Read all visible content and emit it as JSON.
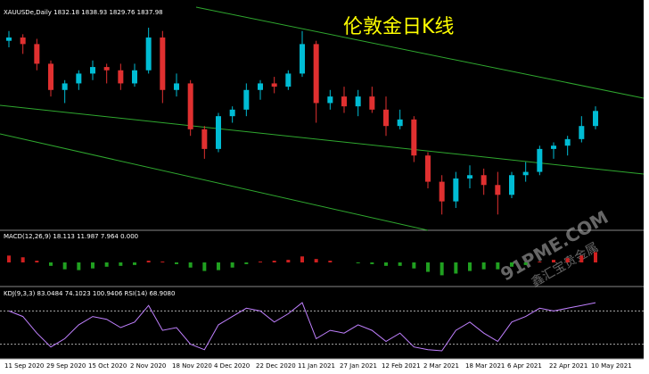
{
  "window": {
    "header": "XAUUSDe,Daily 1832.18 1838.93 1829.76 1837.98",
    "title": "伦敦金日K线",
    "x_labels": [
      "11 Sep 2020",
      "29 Sep 2020",
      "15 Oct 2020",
      "2 Nov 2020",
      "18 Nov 2020",
      "4 Dec 2020",
      "22 Dec 2020",
      "11 Jan 2021",
      "27 Jan 2021",
      "12 Feb 2021",
      "2 Mar 2021",
      "18 Mar 2021",
      "6 Apr 2021",
      "22 Apr 2021",
      "10 May 2021"
    ],
    "macd_label": "MACD(12,26,9) 18.113 11.987 7.964 0.000",
    "kdj_label": "KDJ(9,3,3) 83.0484 74.1023 100.9406 RSI(14) 68.9080",
    "watermark": [
      "91PME.COM",
      "鑫汇宝贵金属"
    ]
  },
  "chart_data": {
    "type": "candlestick",
    "up_color": "#00bcd4",
    "down_color": "#e03030",
    "ylim": [
      1660,
      1980
    ],
    "candles": [
      {
        "o": 1945,
        "h": 1960,
        "l": 1935,
        "c": 1950
      },
      {
        "o": 1950,
        "h": 1955,
        "l": 1925,
        "c": 1940
      },
      {
        "o": 1940,
        "h": 1948,
        "l": 1900,
        "c": 1910
      },
      {
        "o": 1910,
        "h": 1915,
        "l": 1860,
        "c": 1870
      },
      {
        "o": 1870,
        "h": 1885,
        "l": 1850,
        "c": 1880
      },
      {
        "o": 1880,
        "h": 1900,
        "l": 1870,
        "c": 1895
      },
      {
        "o": 1895,
        "h": 1915,
        "l": 1885,
        "c": 1905
      },
      {
        "o": 1905,
        "h": 1910,
        "l": 1880,
        "c": 1900
      },
      {
        "o": 1900,
        "h": 1910,
        "l": 1870,
        "c": 1880
      },
      {
        "o": 1880,
        "h": 1910,
        "l": 1875,
        "c": 1900
      },
      {
        "o": 1900,
        "h": 1965,
        "l": 1895,
        "c": 1950
      },
      {
        "o": 1950,
        "h": 1960,
        "l": 1850,
        "c": 1870
      },
      {
        "o": 1870,
        "h": 1895,
        "l": 1860,
        "c": 1880
      },
      {
        "o": 1880,
        "h": 1885,
        "l": 1800,
        "c": 1810
      },
      {
        "o": 1810,
        "h": 1815,
        "l": 1765,
        "c": 1780
      },
      {
        "o": 1780,
        "h": 1835,
        "l": 1775,
        "c": 1830
      },
      {
        "o": 1830,
        "h": 1845,
        "l": 1820,
        "c": 1840
      },
      {
        "o": 1840,
        "h": 1880,
        "l": 1830,
        "c": 1870
      },
      {
        "o": 1870,
        "h": 1885,
        "l": 1855,
        "c": 1880
      },
      {
        "o": 1880,
        "h": 1890,
        "l": 1865,
        "c": 1875
      },
      {
        "o": 1875,
        "h": 1900,
        "l": 1870,
        "c": 1895
      },
      {
        "o": 1895,
        "h": 1960,
        "l": 1890,
        "c": 1940
      },
      {
        "o": 1940,
        "h": 1945,
        "l": 1820,
        "c": 1850
      },
      {
        "o": 1850,
        "h": 1870,
        "l": 1840,
        "c": 1860
      },
      {
        "o": 1860,
        "h": 1875,
        "l": 1835,
        "c": 1845
      },
      {
        "o": 1845,
        "h": 1870,
        "l": 1830,
        "c": 1860
      },
      {
        "o": 1860,
        "h": 1875,
        "l": 1835,
        "c": 1840
      },
      {
        "o": 1840,
        "h": 1860,
        "l": 1800,
        "c": 1815
      },
      {
        "o": 1815,
        "h": 1840,
        "l": 1810,
        "c": 1825
      },
      {
        "o": 1825,
        "h": 1830,
        "l": 1760,
        "c": 1770
      },
      {
        "o": 1770,
        "h": 1775,
        "l": 1720,
        "c": 1730
      },
      {
        "o": 1730,
        "h": 1740,
        "l": 1680,
        "c": 1700
      },
      {
        "o": 1700,
        "h": 1745,
        "l": 1690,
        "c": 1735
      },
      {
        "o": 1735,
        "h": 1755,
        "l": 1720,
        "c": 1740
      },
      {
        "o": 1740,
        "h": 1750,
        "l": 1710,
        "c": 1725
      },
      {
        "o": 1725,
        "h": 1745,
        "l": 1680,
        "c": 1710
      },
      {
        "o": 1710,
        "h": 1745,
        "l": 1705,
        "c": 1740
      },
      {
        "o": 1740,
        "h": 1760,
        "l": 1730,
        "c": 1745
      },
      {
        "o": 1745,
        "h": 1785,
        "l": 1740,
        "c": 1780
      },
      {
        "o": 1780,
        "h": 1790,
        "l": 1765,
        "c": 1785
      },
      {
        "o": 1785,
        "h": 1800,
        "l": 1770,
        "c": 1795
      },
      {
        "o": 1795,
        "h": 1830,
        "l": 1790,
        "c": 1815
      },
      {
        "o": 1815,
        "h": 1845,
        "l": 1810,
        "c": 1838
      }
    ],
    "macd": {
      "pos_color": "#d02020",
      "neg_color": "#20a020",
      "ylim": [
        -25,
        25
      ],
      "values": [
        8,
        6,
        2,
        -4,
        -8,
        -9,
        -7,
        -5,
        -4,
        -3,
        2,
        1,
        -2,
        -6,
        -10,
        -9,
        -6,
        -2,
        1,
        2,
        3,
        7,
        4,
        2,
        0,
        -1,
        -2,
        -4,
        -4,
        -7,
        -11,
        -15,
        -13,
        -10,
        -8,
        -8,
        -5,
        -3,
        1,
        3,
        5,
        8,
        12
      ]
    },
    "kdj": {
      "color": "#c080ff",
      "ylim": [
        0,
        100
      ],
      "levels": [
        20,
        80
      ],
      "values": [
        80,
        70,
        40,
        15,
        30,
        55,
        70,
        65,
        50,
        60,
        90,
        45,
        50,
        20,
        10,
        55,
        70,
        85,
        80,
        60,
        75,
        95,
        30,
        45,
        40,
        55,
        45,
        25,
        40,
        15,
        10,
        8,
        45,
        60,
        40,
        25,
        60,
        70,
        85,
        80,
        85,
        90,
        95
      ]
    }
  }
}
